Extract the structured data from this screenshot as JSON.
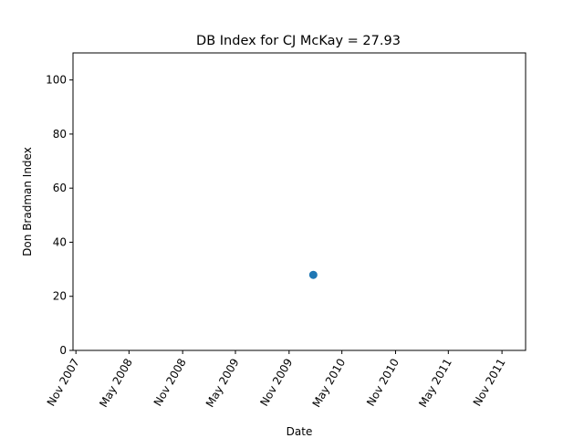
{
  "chart_data": {
    "type": "scatter",
    "title": "DB Index for CJ McKay = 27.93",
    "xlabel": "Date",
    "ylabel": "Don Bradman Index",
    "x_ticks": [
      "Nov 2007",
      "May 2008",
      "Nov 2008",
      "May 2009",
      "Nov 2009",
      "May 2010",
      "Nov 2010",
      "May 2011",
      "Nov 2011"
    ],
    "y_ticks": [
      "0",
      "20",
      "40",
      "60",
      "80",
      "100"
    ],
    "ylim": [
      0,
      110
    ],
    "xlim": [
      "2007-10-22",
      "2012-01-21"
    ],
    "grid": false,
    "series": [
      {
        "color": "#1f77b4",
        "points": [
          {
            "x": "2010-01-23",
            "y": 27.93
          }
        ]
      }
    ]
  }
}
